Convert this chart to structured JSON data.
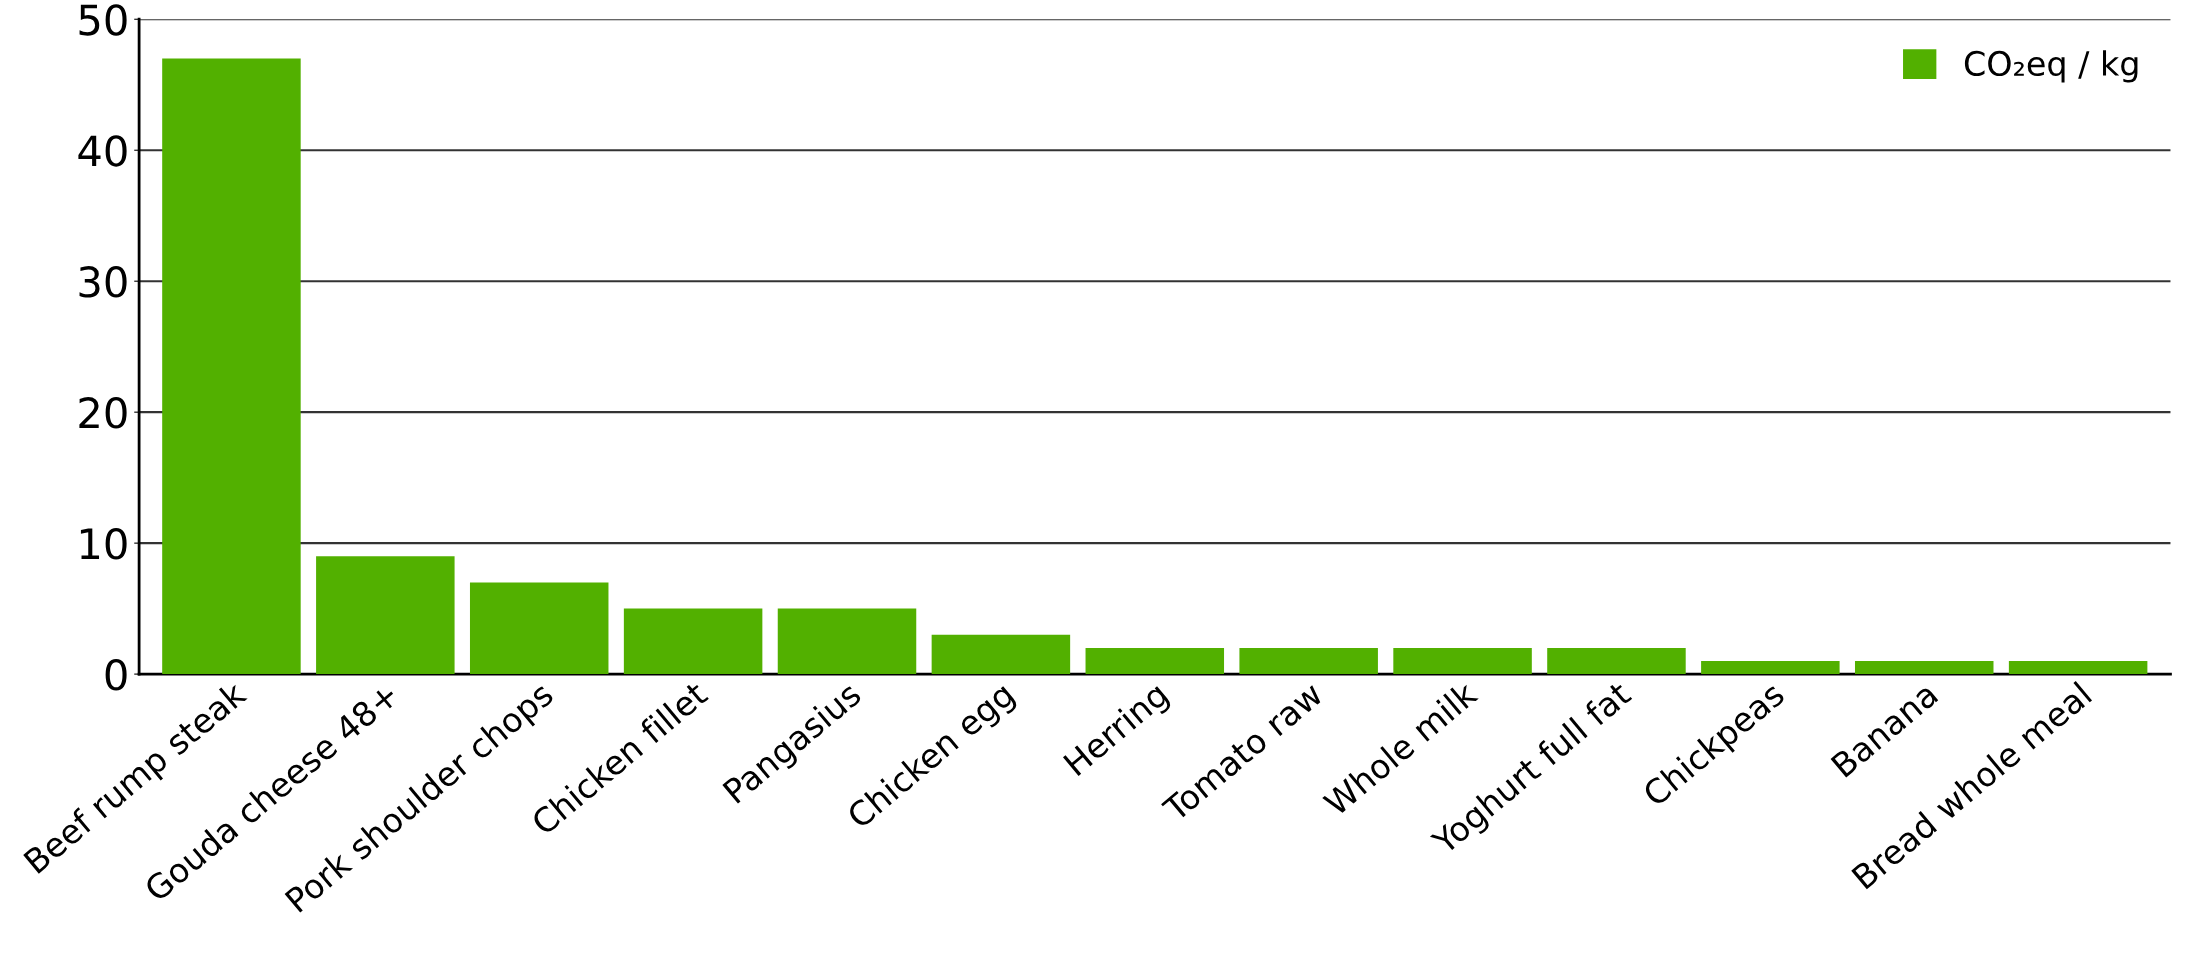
{
  "chart_data": {
    "type": "bar",
    "categories": [
      "Beef rump steak",
      "Gouda cheese 48+",
      "Pork shoulder chops",
      "Chicken fillet",
      "Pangasius",
      "Chicken egg",
      "Herring",
      "Tomato raw",
      "Whole milk",
      "Yoghurt full fat",
      "Chickpeas",
      "Banana",
      "Bread whole meal"
    ],
    "series": [
      {
        "name": "CO₂eq / kg",
        "color": "#52b000",
        "values": [
          47,
          9,
          7,
          5,
          5,
          3,
          2,
          2,
          2,
          2,
          1,
          1,
          1
        ]
      }
    ],
    "ylim": [
      0,
      50
    ],
    "yticks": [
      0,
      10,
      20,
      30,
      40,
      50
    ],
    "grid": "y",
    "legend": "top right"
  }
}
